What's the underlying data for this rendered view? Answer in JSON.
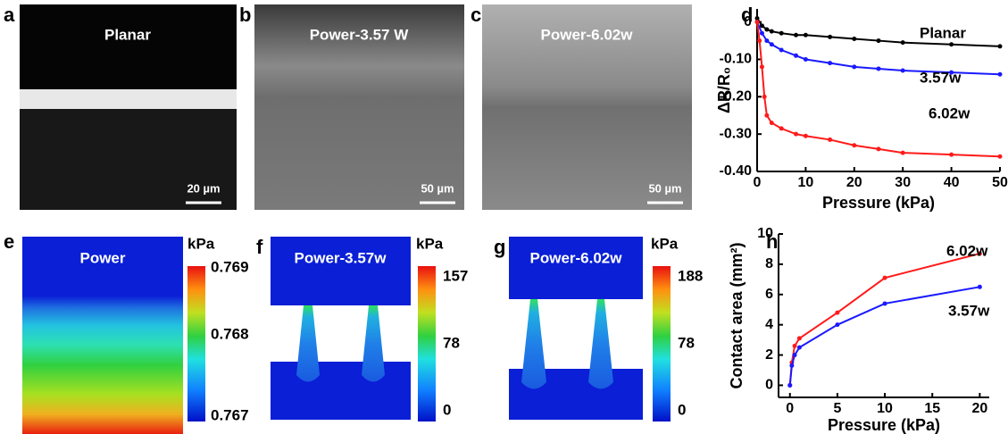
{
  "panels": [
    {
      "label": "a",
      "title": "Planar",
      "scale_bar": "20 µm"
    },
    {
      "label": "b",
      "title": "Power-3.57 W",
      "scale_bar": "50 µm"
    },
    {
      "label": "c",
      "title": "Power-6.02w",
      "scale_bar": "50 µm"
    },
    {
      "label": "e",
      "title": "Power",
      "unit": "kPa",
      "colorbar_labels": [
        "0.769",
        "0.768",
        "0.767"
      ]
    },
    {
      "label": "f",
      "title": "Power-3.57w",
      "unit": "kPa",
      "colorbar_labels": [
        "157",
        "78",
        "0"
      ]
    },
    {
      "label": "g",
      "title": "Power-6.02w",
      "unit": "kPa",
      "colorbar_labels": [
        "188",
        "78",
        "0"
      ]
    }
  ],
  "chart_data": [
    {
      "type": "line",
      "panel_label": "d",
      "x_label": "Pressure (kPa)",
      "y_label": "ΔR/R₀",
      "xlim": [
        0,
        50
      ],
      "xticks": [
        0,
        10,
        20,
        30,
        40,
        50
      ],
      "ylim": [
        -0.4,
        0.035
      ],
      "yticks": [
        0,
        {
          "value": -0.1,
          "label": "-0.10"
        },
        {
          "value": -0.2,
          "label": "-0.20"
        },
        {
          "value": -0.3,
          "label": "-0.30"
        },
        {
          "value": -0.4,
          "label": "-0.40"
        }
      ],
      "series": [
        {
          "name": "Planar",
          "color": "#000000",
          "x": [
            0,
            1,
            2,
            3,
            5,
            8,
            10,
            15,
            20,
            25,
            30,
            40,
            50
          ],
          "values": [
            0.01,
            -0.01,
            -0.02,
            -0.025,
            -0.03,
            -0.035,
            -0.035,
            -0.04,
            -0.045,
            -0.05,
            -0.055,
            -0.06,
            -0.065
          ]
        },
        {
          "name": "3.57w",
          "color": "#1a1aff",
          "x": [
            0,
            1,
            2,
            3,
            5,
            8,
            10,
            15,
            20,
            25,
            30,
            40,
            50
          ],
          "values": [
            0,
            -0.03,
            -0.05,
            -0.06,
            -0.075,
            -0.09,
            -0.1,
            -0.11,
            -0.12,
            -0.125,
            -0.13,
            -0.135,
            -0.14
          ]
        },
        {
          "name": "6.02w",
          "color": "#ff1a1a",
          "x": [
            0,
            0.5,
            1,
            1.5,
            2,
            3,
            5,
            8,
            10,
            15,
            20,
            25,
            30,
            40,
            50
          ],
          "values": [
            0,
            -0.05,
            -0.12,
            -0.2,
            -0.25,
            -0.27,
            -0.285,
            -0.3,
            -0.305,
            -0.315,
            -0.33,
            -0.34,
            -0.35,
            -0.355,
            -0.36
          ]
        }
      ]
    },
    {
      "type": "line",
      "panel_label": "h",
      "x_label": "Pressure (kPa)",
      "y_label": "Contact area (mm²)",
      "xlim": [
        -1.2,
        21
      ],
      "xticks": [
        0,
        5,
        10,
        15,
        20
      ],
      "ylim": [
        -0.8,
        10
      ],
      "yticks": [
        0,
        2,
        4,
        6,
        8,
        10
      ],
      "series": [
        {
          "name": "6.02w",
          "color": "#ff1a1a",
          "x": [
            0,
            0.2,
            0.5,
            1,
            5,
            10,
            20
          ],
          "values": [
            0,
            1.5,
            2.6,
            3.1,
            4.8,
            7.1,
            8.7
          ]
        },
        {
          "name": "3.57w",
          "color": "#1a1aff",
          "x": [
            0,
            0.2,
            0.5,
            1,
            5,
            10,
            20
          ],
          "values": [
            0,
            1.3,
            2,
            2.5,
            4,
            5.4,
            6.5
          ]
        }
      ]
    }
  ]
}
